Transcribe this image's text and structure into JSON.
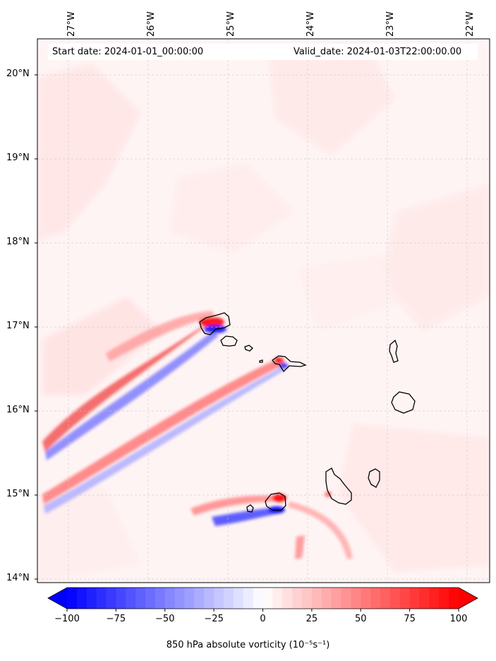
{
  "map": {
    "start_date": "Start date: 2024-01-01_00:00:00",
    "valid_date": "Valid_date: 2024-01-03T22:00:00.00",
    "lon_labels": [
      "27°W",
      "26°W",
      "25°W",
      "24°W",
      "23°W",
      "22°W"
    ],
    "lat_labels": [
      "20°N",
      "19°N",
      "18°N",
      "17°N",
      "16°N",
      "15°N",
      "14°N"
    ],
    "extent": {
      "lon": [
        -27.35,
        -21.95
      ],
      "lat": [
        13.95,
        20.4
      ]
    },
    "field": "850 hPa absolute vorticity",
    "colors": {
      "negative": "#0000ff",
      "positive": "#ff0000",
      "neutral": "#ffffff",
      "coast": "#000000"
    }
  },
  "colorbar": {
    "label": "850 hPa absolute vorticity (10⁻⁵s⁻¹)",
    "ticks": [
      "−100",
      "−75",
      "−50",
      "−25",
      "0",
      "25",
      "50",
      "75",
      "100"
    ],
    "range": [
      -100,
      100
    ],
    "levels": 40,
    "extend": "both"
  }
}
